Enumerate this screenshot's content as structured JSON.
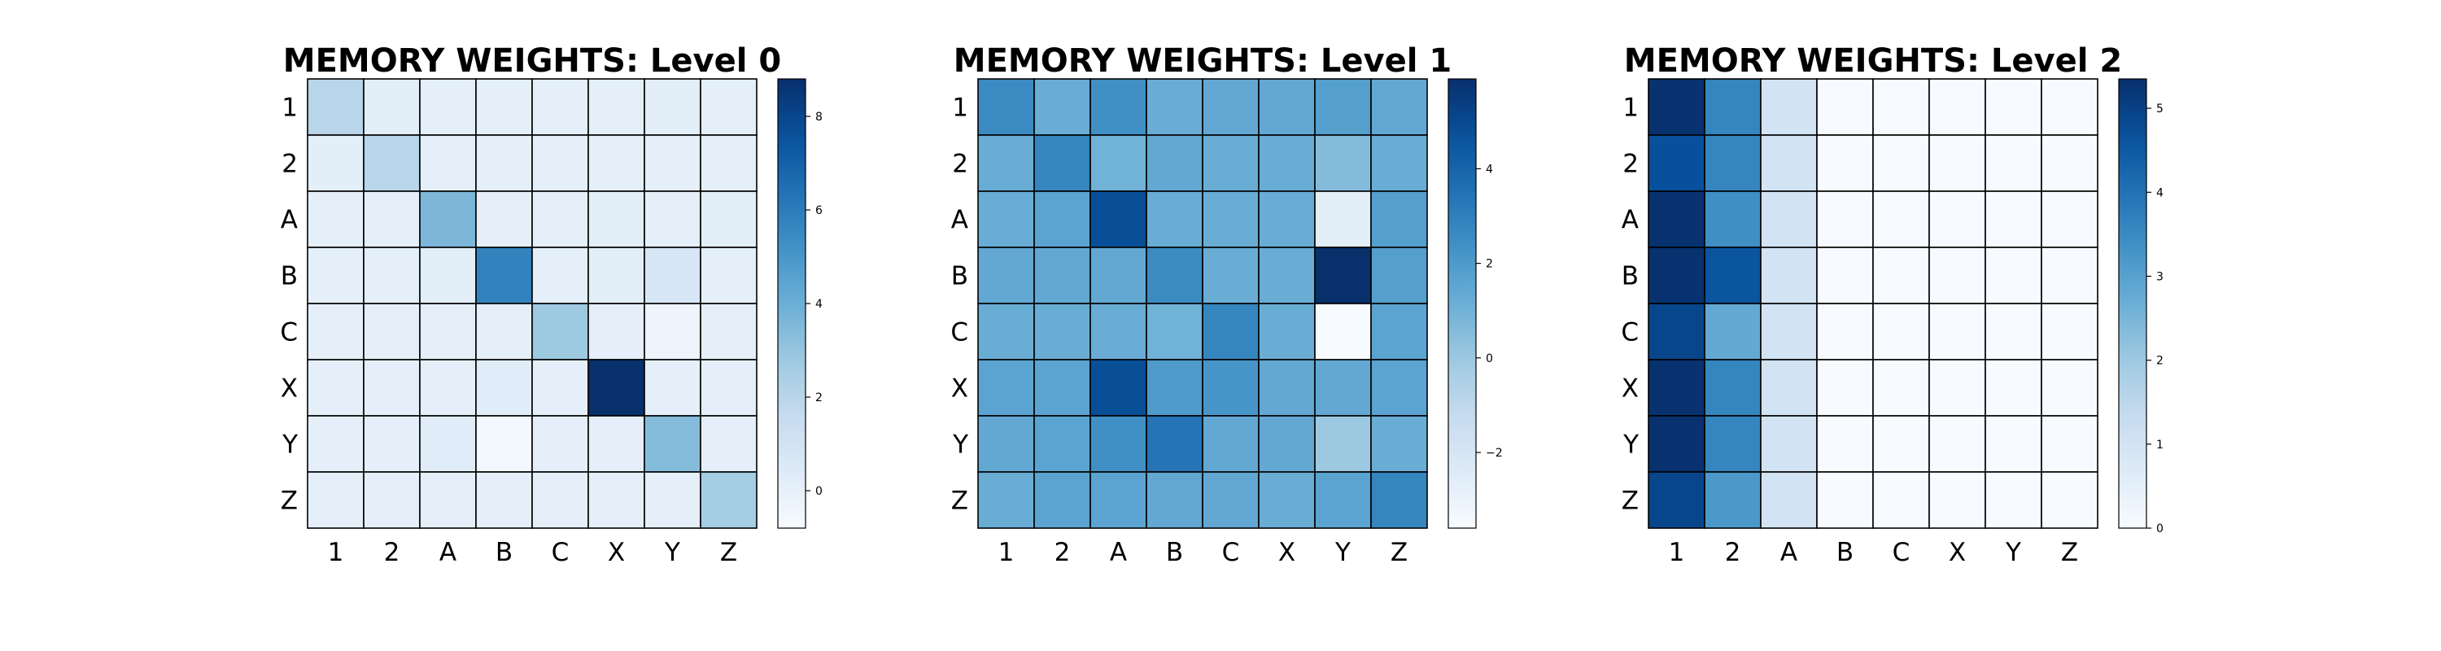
{
  "chart_data": [
    {
      "type": "heatmap",
      "title": "MEMORY WEIGHTS: Level 0",
      "row_labels": [
        "1",
        "2",
        "A",
        "B",
        "C",
        "X",
        "Y",
        "Z"
      ],
      "col_labels": [
        "1",
        "2",
        "A",
        "B",
        "C",
        "X",
        "Y",
        "Z"
      ],
      "colormap": "Blues",
      "color_range": [
        -0.8,
        8.8
      ],
      "colorbar_ticks": [
        "0",
        "2",
        "4",
        "6",
        "8"
      ],
      "colorbar_tick_values": [
        0,
        2,
        4,
        6,
        8
      ],
      "values": [
        [
          2.0,
          0.2,
          0.1,
          0.1,
          0.1,
          0.1,
          0.2,
          0.1
        ],
        [
          0.2,
          2.0,
          0.1,
          0.1,
          0.1,
          0.1,
          0.1,
          0.1
        ],
        [
          0.1,
          0.1,
          3.6,
          0.1,
          0.1,
          0.2,
          0.1,
          0.2
        ],
        [
          0.1,
          0.1,
          0.2,
          5.8,
          0.1,
          0.2,
          0.8,
          0.1
        ],
        [
          0.1,
          0.1,
          0.1,
          0.1,
          2.8,
          0.1,
          -0.3,
          0.1
        ],
        [
          0.1,
          0.1,
          0.1,
          0.3,
          0.1,
          8.8,
          0.1,
          0.1
        ],
        [
          0.1,
          0.1,
          0.3,
          -0.6,
          0.1,
          0.1,
          3.4,
          0.1
        ],
        [
          0.1,
          0.1,
          0.1,
          0.1,
          0.1,
          0.1,
          0.1,
          2.6
        ]
      ]
    },
    {
      "type": "heatmap",
      "title": "MEMORY WEIGHTS: Level 1",
      "row_labels": [
        "1",
        "2",
        "A",
        "B",
        "C",
        "X",
        "Y",
        "Z"
      ],
      "col_labels": [
        "1",
        "2",
        "A",
        "B",
        "C",
        "X",
        "Y",
        "Z"
      ],
      "colormap": "Blues",
      "color_range": [
        -3.6,
        5.9
      ],
      "colorbar_ticks": [
        "−2",
        "0",
        "2",
        "4"
      ],
      "colorbar_tick_values": [
        -2,
        0,
        2,
        4
      ],
      "values": [
        [
          2.6,
          1.2,
          2.4,
          1.2,
          1.4,
          1.4,
          1.8,
          1.4
        ],
        [
          1.2,
          2.8,
          1.0,
          1.4,
          1.2,
          1.2,
          0.6,
          1.2
        ],
        [
          1.2,
          1.6,
          4.8,
          1.2,
          1.2,
          1.2,
          -2.6,
          1.8
        ],
        [
          1.4,
          1.4,
          1.4,
          2.6,
          1.2,
          1.2,
          5.9,
          1.8
        ],
        [
          1.2,
          1.2,
          1.2,
          1.0,
          2.8,
          1.2,
          -3.6,
          1.6
        ],
        [
          1.6,
          1.6,
          4.8,
          2.0,
          2.2,
          1.4,
          1.4,
          1.6
        ],
        [
          1.4,
          1.6,
          2.4,
          3.4,
          1.4,
          1.4,
          0.0,
          1.2
        ],
        [
          1.2,
          1.6,
          1.6,
          1.4,
          1.4,
          1.2,
          1.6,
          2.8
        ]
      ]
    },
    {
      "type": "heatmap",
      "title": "MEMORY WEIGHTS: Level 2",
      "row_labels": [
        "1",
        "2",
        "A",
        "B",
        "C",
        "X",
        "Y",
        "Z"
      ],
      "col_labels": [
        "1",
        "2",
        "A",
        "B",
        "C",
        "X",
        "Y",
        "Z"
      ],
      "colormap": "Blues",
      "color_range": [
        0,
        5.35
      ],
      "colorbar_ticks": [
        "0",
        "1",
        "2",
        "3",
        "4",
        "5"
      ],
      "colorbar_tick_values": [
        0,
        1,
        2,
        3,
        4,
        5
      ],
      "values": [
        [
          5.3,
          3.6,
          1.0,
          0.0,
          0.0,
          0.0,
          0.0,
          0.0
        ],
        [
          4.7,
          3.6,
          1.0,
          0.0,
          0.0,
          0.0,
          0.0,
          0.0
        ],
        [
          5.3,
          3.4,
          1.0,
          0.0,
          0.0,
          0.0,
          0.0,
          0.0
        ],
        [
          5.3,
          4.6,
          1.0,
          0.0,
          0.0,
          0.0,
          0.0,
          0.0
        ],
        [
          4.9,
          2.8,
          1.0,
          0.0,
          0.0,
          0.0,
          0.0,
          0.0
        ],
        [
          5.3,
          3.6,
          1.0,
          0.0,
          0.0,
          0.0,
          0.0,
          0.0
        ],
        [
          5.3,
          3.6,
          1.0,
          0.0,
          0.0,
          0.0,
          0.0,
          0.0
        ],
        [
          4.9,
          3.2,
          1.0,
          0.0,
          0.0,
          0.0,
          0.0,
          0.0
        ]
      ]
    }
  ]
}
